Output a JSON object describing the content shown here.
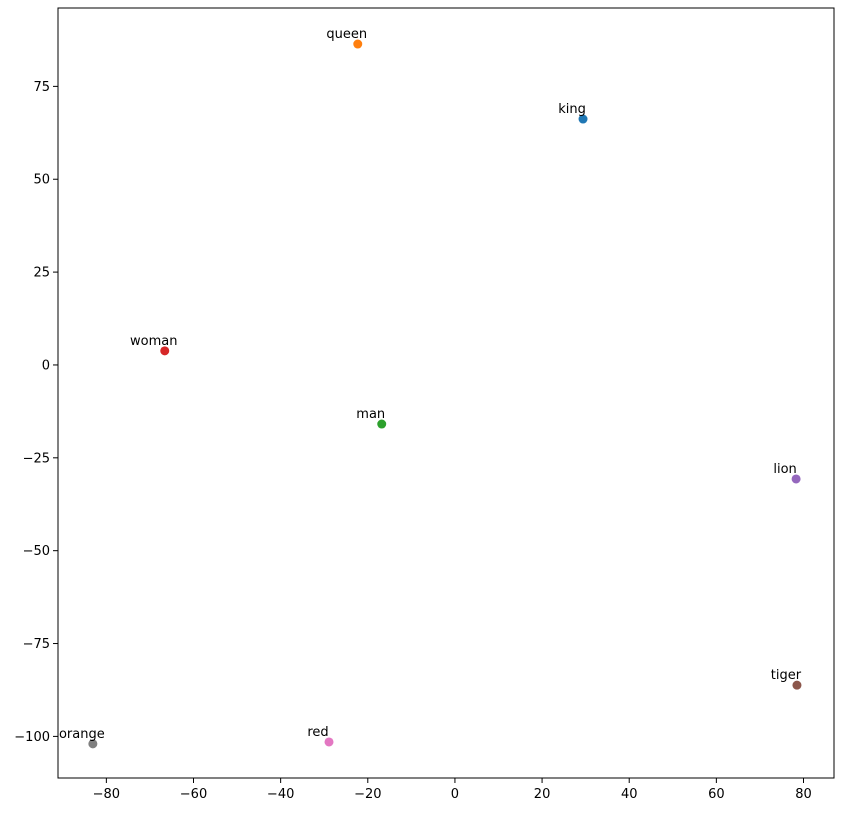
{
  "chart_data": {
    "type": "scatter",
    "labels": [
      "king",
      "queen",
      "man",
      "woman",
      "lion",
      "tiger",
      "red",
      "orange"
    ],
    "x": [
      29.4,
      -22.3,
      -16.8,
      -66.6,
      78.3,
      78.5,
      -28.9,
      -83.1
    ],
    "y": [
      66.2,
      86.4,
      -15.9,
      3.8,
      -30.7,
      -86.2,
      -101.5,
      -102.0
    ],
    "colors": [
      "#1f77b4",
      "#ff7f0e",
      "#2ca02c",
      "#d62728",
      "#9467bd",
      "#8c564b",
      "#e377c2",
      "#7f7f7f"
    ],
    "xlim": [
      -91.1,
      87.0
    ],
    "ylim": [
      -111.2,
      96.1
    ],
    "xticks": [
      {
        "value": -80,
        "label": "−80"
      },
      {
        "value": -60,
        "label": "−60"
      },
      {
        "value": -40,
        "label": "−40"
      },
      {
        "value": -20,
        "label": "−20"
      },
      0,
      20,
      40,
      60,
      80
    ],
    "yticks": [
      {
        "value": -100,
        "label": "−100"
      },
      {
        "value": -75,
        "label": "−75"
      },
      {
        "value": -50,
        "label": "−50"
      },
      {
        "value": -25,
        "label": "−25"
      },
      0,
      25,
      50,
      75
    ],
    "grid": false
  }
}
